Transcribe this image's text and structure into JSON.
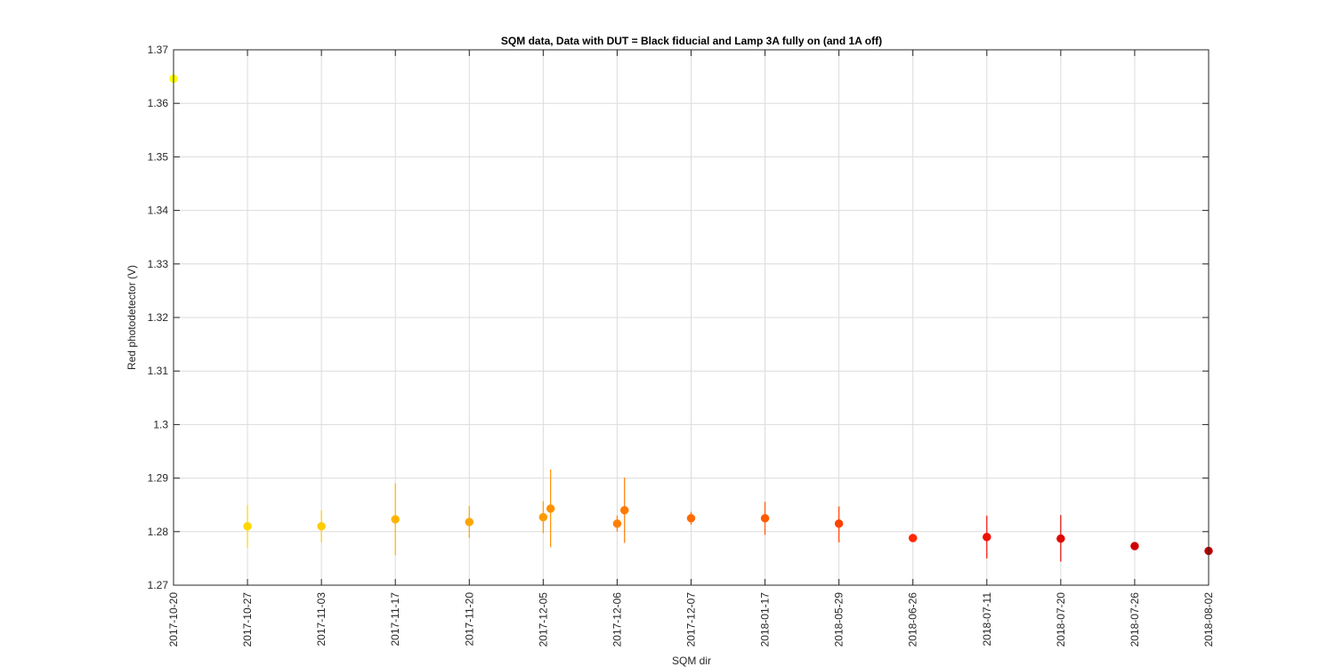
{
  "chart_data": {
    "type": "scatter",
    "title": "SQM data, Data with DUT = Black fiducial and Lamp 3A fully on (and 1A off)",
    "xlabel": "SQM dir",
    "ylabel": "Red photodetector (V)",
    "ylim": [
      1.27,
      1.37
    ],
    "yticks": [
      "1.27",
      "1.28",
      "1.29",
      "1.3",
      "1.31",
      "1.32",
      "1.33",
      "1.34",
      "1.35",
      "1.36",
      "1.37"
    ],
    "categories": [
      "2017-10-20",
      "2017-10-27",
      "2017-11-03",
      "2017-11-17",
      "2017-11-20",
      "2017-12-05",
      "2017-12-06",
      "2017-12-07",
      "2018-01-17",
      "2018-05-29",
      "2018-06-26",
      "2018-07-11",
      "2018-07-20",
      "2018-07-26",
      "2018-08-02"
    ],
    "grid": true,
    "points": [
      {
        "x": 0,
        "y": 1.3646,
        "ylo": 1.3646,
        "yhi": 1.3646,
        "color": "#ffff00"
      },
      {
        "x": 1,
        "y": 1.281,
        "ylo": 1.277,
        "yhi": 1.285,
        "color": "#ffd700"
      },
      {
        "x": 2,
        "y": 1.281,
        "ylo": 1.278,
        "yhi": 1.284,
        "color": "#ffcc00"
      },
      {
        "x": 3,
        "y": 1.2823,
        "ylo": 1.2756,
        "yhi": 1.289,
        "color": "#ffb300"
      },
      {
        "x": 4,
        "y": 1.2818,
        "ylo": 1.2788,
        "yhi": 1.2848,
        "color": "#ffa500"
      },
      {
        "x": 5,
        "y": 1.2827,
        "ylo": 1.2797,
        "yhi": 1.2857,
        "color": "#ff9a00"
      },
      {
        "x": 5.1,
        "y": 1.2843,
        "ylo": 1.2771,
        "yhi": 1.2916,
        "color": "#ff9000"
      },
      {
        "x": 6,
        "y": 1.2815,
        "ylo": 1.28,
        "yhi": 1.283,
        "color": "#ff8000"
      },
      {
        "x": 6.1,
        "y": 1.284,
        "ylo": 1.2779,
        "yhi": 1.2901,
        "color": "#ff7a00"
      },
      {
        "x": 7,
        "y": 1.2825,
        "ylo": 1.2813,
        "yhi": 1.2837,
        "color": "#ff6a00"
      },
      {
        "x": 8,
        "y": 1.2825,
        "ylo": 1.2794,
        "yhi": 1.2856,
        "color": "#ff5a00"
      },
      {
        "x": 9,
        "y": 1.2815,
        "ylo": 1.278,
        "yhi": 1.2847,
        "color": "#ff4200"
      },
      {
        "x": 10,
        "y": 1.2788,
        "ylo": 1.2782,
        "yhi": 1.2795,
        "color": "#ff2800"
      },
      {
        "x": 11,
        "y": 1.279,
        "ylo": 1.275,
        "yhi": 1.283,
        "color": "#f01000"
      },
      {
        "x": 12,
        "y": 1.2787,
        "ylo": 1.2744,
        "yhi": 1.2831,
        "color": "#e00800"
      },
      {
        "x": 13,
        "y": 1.2773,
        "ylo": 1.2768,
        "yhi": 1.2778,
        "color": "#d00000"
      },
      {
        "x": 14,
        "y": 1.2764,
        "ylo": 1.276,
        "yhi": 1.2768,
        "color": "#c00000"
      }
    ]
  }
}
